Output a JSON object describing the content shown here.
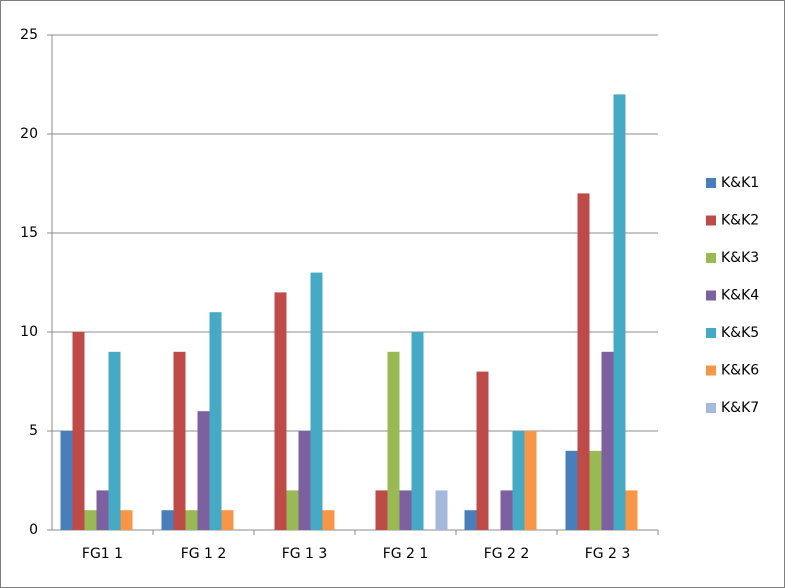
{
  "chart_data": {
    "type": "bar",
    "categories": [
      "FG1 1",
      "FG 1 2",
      "FG 1 3",
      "FG 2 1",
      "FG 2 2",
      "FG 2 3"
    ],
    "series": [
      {
        "name": "K&K1",
        "color": "#4a7ebb",
        "values": [
          5,
          1,
          0,
          0,
          1,
          4
        ]
      },
      {
        "name": "K&K2",
        "color": "#be4b48",
        "values": [
          10,
          9,
          12,
          2,
          8,
          17
        ]
      },
      {
        "name": "K&K3",
        "color": "#98b954",
        "values": [
          1,
          1,
          2,
          9,
          0,
          4
        ]
      },
      {
        "name": "K&K4",
        "color": "#7d60a0",
        "values": [
          2,
          6,
          5,
          2,
          2,
          9
        ]
      },
      {
        "name": "K&K5",
        "color": "#46aac5",
        "values": [
          9,
          11,
          13,
          10,
          5,
          22
        ]
      },
      {
        "name": "K&K6",
        "color": "#f79646",
        "values": [
          1,
          1,
          1,
          0,
          5,
          2
        ]
      },
      {
        "name": "K&K7",
        "color": "#a5b9dd",
        "values": [
          0,
          0,
          0,
          2,
          0,
          0
        ]
      }
    ],
    "ylim": [
      0,
      25
    ],
    "yticks": [
      0,
      5,
      10,
      15,
      20,
      25
    ],
    "grid": true,
    "legend": "right"
  }
}
